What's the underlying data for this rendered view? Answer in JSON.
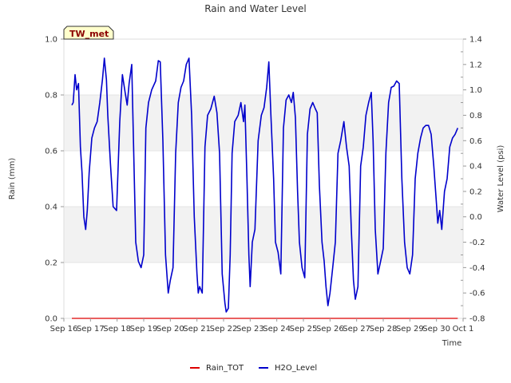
{
  "chart_data": {
    "type": "line",
    "title": "Rain and Water Level",
    "site_badge": "TW_met",
    "xlabel": "Time",
    "ylabel_left": "Rain (mm)",
    "ylabel_right": "Water Level (psi)",
    "ylim_left": [
      0.0,
      1.0
    ],
    "ylim_right": [
      -0.8,
      1.4
    ],
    "x_range_days": [
      0,
      15
    ],
    "x_ticks": [
      "Sep 16",
      "Sep 17",
      "Sep 18",
      "Sep 19",
      "Sep 20",
      "Sep 21",
      "Sep 22",
      "Sep 23",
      "Sep 24",
      "Sep 25",
      "Sep 26",
      "Sep 27",
      "Sep 28",
      "Sep 29",
      "Sep 30",
      "Oct 1"
    ],
    "y_ticks_left": [
      "0.0",
      "0.2",
      "0.4",
      "0.6",
      "0.8",
      "1.0"
    ],
    "y_ticks_right": [
      "-0.8",
      "-0.6",
      "-0.4",
      "-0.2",
      "0.0",
      "0.2",
      "0.4",
      "0.6",
      "0.8",
      "1.0",
      "1.2",
      "1.4"
    ],
    "grid_bands": true,
    "legend": {
      "position": "bottom-center",
      "entries": [
        "Rain_TOT",
        "H2O_Level"
      ]
    },
    "colors": {
      "Rain_TOT": "#dd0000",
      "H2O_Level": "#0000cc"
    },
    "series": [
      {
        "name": "Rain_TOT",
        "axis": "left",
        "x": [
          0.3,
          14.8
        ],
        "values": [
          0.0,
          0.0
        ]
      },
      {
        "name": "H2O_Level",
        "axis": "right",
        "x": [
          0.3,
          0.35,
          0.42,
          0.48,
          0.55,
          0.62,
          0.68,
          0.75,
          0.82,
          0.88,
          0.95,
          1.05,
          1.15,
          1.25,
          1.35,
          1.45,
          1.52,
          1.6,
          1.65,
          1.75,
          1.85,
          1.98,
          2.1,
          2.2,
          2.3,
          2.38,
          2.45,
          2.55,
          2.7,
          2.8,
          2.9,
          3.0,
          3.08,
          3.18,
          3.3,
          3.45,
          3.55,
          3.62,
          3.72,
          3.82,
          3.92,
          4.0,
          4.1,
          4.2,
          4.3,
          4.4,
          4.5,
          4.6,
          4.7,
          4.8,
          4.9,
          5.0,
          5.05,
          5.1,
          5.2,
          5.3,
          5.4,
          5.52,
          5.65,
          5.75,
          5.85,
          5.95,
          6.05,
          6.1,
          6.18,
          6.25,
          6.32,
          6.42,
          6.55,
          6.65,
          6.75,
          6.8,
          6.88,
          6.95,
          7.0,
          7.08,
          7.18,
          7.3,
          7.42,
          7.52,
          7.62,
          7.7,
          7.78,
          7.88,
          7.95,
          8.05,
          8.15,
          8.25,
          8.35,
          8.45,
          8.55,
          8.62,
          8.7,
          8.78,
          8.85,
          8.95,
          9.05,
          9.15,
          9.25,
          9.35,
          9.45,
          9.52,
          9.6,
          9.7,
          9.78,
          9.85,
          9.92,
          10.0,
          10.1,
          10.2,
          10.3,
          10.4,
          10.52,
          10.62,
          10.72,
          10.8,
          10.88,
          10.95,
          11.05,
          11.15,
          11.25,
          11.35,
          11.45,
          11.55,
          11.62,
          11.7,
          11.8,
          11.9,
          12.0,
          12.1,
          12.2,
          12.3,
          12.4,
          12.5,
          12.6,
          12.7,
          12.8,
          12.9,
          13.0,
          13.1,
          13.2,
          13.3,
          13.4,
          13.5,
          13.6,
          13.7,
          13.8,
          13.9,
          14.0,
          14.05,
          14.12,
          14.2,
          14.3,
          14.4,
          14.5,
          14.6,
          14.7,
          14.8
        ],
        "values": [
          0.88,
          0.9,
          1.12,
          1.0,
          1.05,
          0.55,
          0.35,
          0.0,
          -0.1,
          0.05,
          0.35,
          0.62,
          0.7,
          0.75,
          0.9,
          1.08,
          1.25,
          1.08,
          0.8,
          0.42,
          0.08,
          0.05,
          0.75,
          1.12,
          0.98,
          0.88,
          1.05,
          1.2,
          -0.2,
          -0.35,
          -0.4,
          -0.3,
          0.7,
          0.9,
          1.0,
          1.07,
          1.23,
          1.22,
          0.6,
          -0.3,
          -0.6,
          -0.5,
          -0.4,
          0.5,
          0.9,
          1.02,
          1.07,
          1.2,
          1.25,
          0.8,
          0.0,
          -0.45,
          -0.6,
          -0.55,
          -0.6,
          0.55,
          0.8,
          0.85,
          0.95,
          0.82,
          0.5,
          -0.45,
          -0.68,
          -0.75,
          -0.72,
          -0.3,
          0.5,
          0.75,
          0.8,
          0.9,
          0.75,
          0.88,
          0.3,
          -0.3,
          -0.55,
          -0.2,
          -0.1,
          0.6,
          0.8,
          0.86,
          1.02,
          1.22,
          0.8,
          0.3,
          -0.2,
          -0.28,
          -0.45,
          0.7,
          0.92,
          0.96,
          0.9,
          0.98,
          0.78,
          0.2,
          -0.2,
          -0.4,
          -0.48,
          0.65,
          0.85,
          0.9,
          0.85,
          0.82,
          0.25,
          -0.2,
          -0.35,
          -0.55,
          -0.7,
          -0.6,
          -0.4,
          -0.2,
          0.5,
          0.6,
          0.75,
          0.55,
          0.4,
          -0.1,
          -0.5,
          -0.65,
          -0.55,
          0.4,
          0.55,
          0.8,
          0.9,
          0.98,
          0.6,
          -0.1,
          -0.45,
          -0.35,
          -0.25,
          0.5,
          0.9,
          1.02,
          1.03,
          1.07,
          1.05,
          0.3,
          -0.2,
          -0.4,
          -0.45,
          -0.3,
          0.3,
          0.5,
          0.62,
          0.7,
          0.72,
          0.72,
          0.65,
          0.4,
          0.1,
          -0.05,
          0.05,
          -0.1,
          0.2,
          0.3,
          0.55,
          0.62,
          0.65,
          0.7
        ]
      }
    ]
  }
}
